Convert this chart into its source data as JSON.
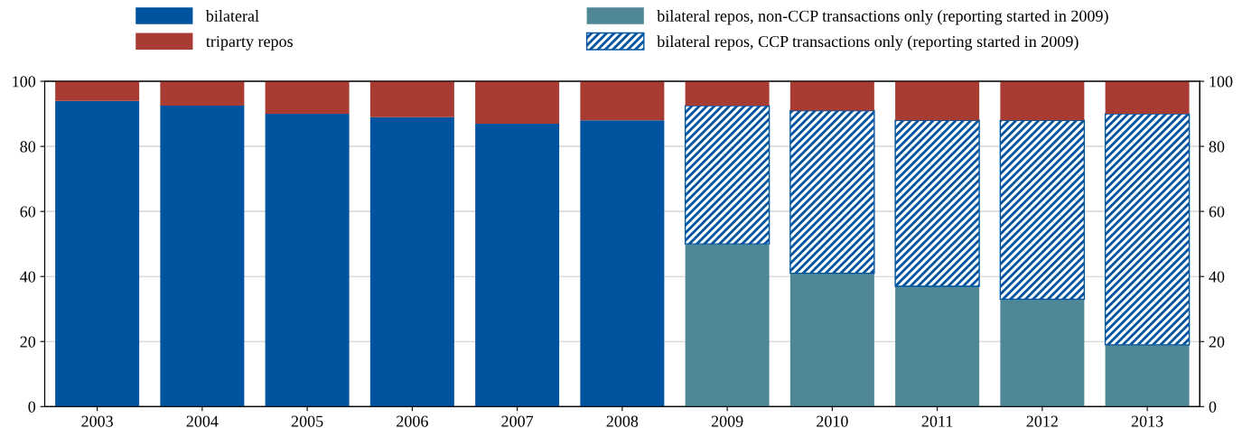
{
  "chart_data": {
    "type": "bar",
    "stacked": true,
    "categories": [
      "2003",
      "2004",
      "2005",
      "2006",
      "2007",
      "2008",
      "2009",
      "2010",
      "2011",
      "2012",
      "2013"
    ],
    "series": [
      {
        "name": "bilateral",
        "color": "#00539f",
        "values": [
          94,
          92.5,
          90,
          89,
          87,
          88,
          null,
          null,
          null,
          null,
          null
        ]
      },
      {
        "name": "bilateral repos, non-CCP transactions only (reporting started in 2009)",
        "color": "#4f8796",
        "values": [
          null,
          null,
          null,
          null,
          null,
          null,
          50,
          41,
          37,
          33,
          19
        ]
      },
      {
        "name": "bilateral repos, CCP transactions only (reporting started in 2009)",
        "color": "#00539f",
        "values": [
          null,
          null,
          null,
          null,
          null,
          null,
          42.5,
          50,
          51,
          55,
          71
        ]
      },
      {
        "name": "triparty repos",
        "color": "#a83c33",
        "values": [
          6,
          7.5,
          10,
          11,
          13,
          12,
          7.5,
          9,
          12,
          12,
          10
        ]
      }
    ],
    "ylim": [
      0,
      100
    ],
    "yticks": [
      0,
      20,
      40,
      60,
      80,
      100
    ],
    "y2lim": [
      0,
      100
    ],
    "y2ticks": [
      0,
      20,
      40,
      60,
      80,
      100
    ],
    "grid": "y",
    "legend": "top"
  }
}
